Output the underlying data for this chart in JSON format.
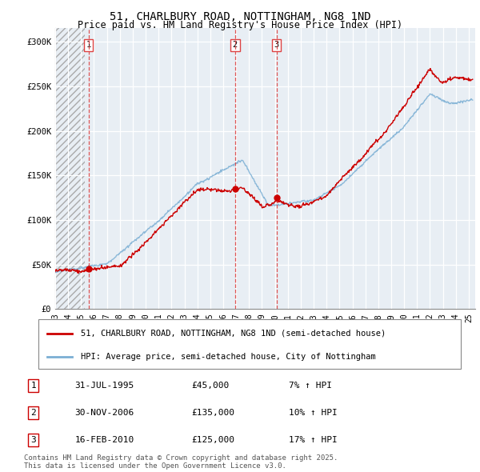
{
  "title": "51, CHARLBURY ROAD, NOTTINGHAM, NG8 1ND",
  "subtitle": "Price paid vs. HM Land Registry's House Price Index (HPI)",
  "ylabel_ticks": [
    "£0",
    "£50K",
    "£100K",
    "£150K",
    "£200K",
    "£250K",
    "£300K"
  ],
  "ytick_values": [
    0,
    50000,
    100000,
    150000,
    200000,
    250000,
    300000
  ],
  "ylim": [
    0,
    315000
  ],
  "xlim_start": 1993.0,
  "xlim_end": 2025.5,
  "red_line_color": "#cc0000",
  "blue_line_color": "#7bafd4",
  "dashed_line_color": "#dd4444",
  "legend_line1": "51, CHARLBURY ROAD, NOTTINGHAM, NG8 1ND (semi-detached house)",
  "legend_line2": "HPI: Average price, semi-detached house, City of Nottingham",
  "sale1_date": 1995.58,
  "sale1_price": 45000,
  "sale2_date": 2006.92,
  "sale2_price": 135000,
  "sale3_date": 2010.12,
  "sale3_price": 125000,
  "hatch_end": 1995.3,
  "table_entries": [
    [
      "1",
      "31-JUL-1995",
      "£45,000",
      "7% ↑ HPI"
    ],
    [
      "2",
      "30-NOV-2006",
      "£135,000",
      "10% ↑ HPI"
    ],
    [
      "3",
      "16-FEB-2010",
      "£125,000",
      "17% ↑ HPI"
    ]
  ],
  "footnote": "Contains HM Land Registry data © Crown copyright and database right 2025.\nThis data is licensed under the Open Government Licence v3.0.",
  "title_fontsize": 10,
  "subtitle_fontsize": 8.5,
  "tick_fontsize": 7.5,
  "legend_fontsize": 7.5,
  "table_fontsize": 8,
  "footnote_fontsize": 6.5
}
